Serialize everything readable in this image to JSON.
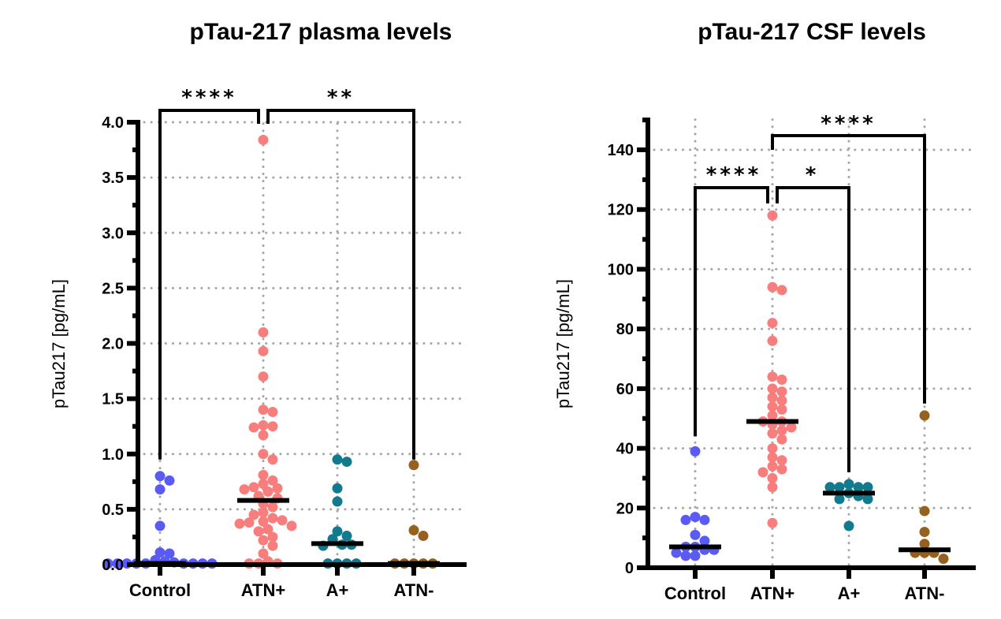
{
  "chart_data": [
    {
      "type": "scatter",
      "subtype": "dot-plot-with-median",
      "title": "pTau-217 plasma levels",
      "xlabel": "",
      "ylabel": "pTau217 [pg/mL]",
      "ylim": [
        0,
        4.0
      ],
      "yticks": [
        0.0,
        0.5,
        1.0,
        1.5,
        2.0,
        2.5,
        3.0,
        3.5,
        4.0
      ],
      "ytick_labels": [
        "0.0",
        "0.5",
        "1.0",
        "1.5",
        "2.0",
        "2.5",
        "3.0",
        "3.5",
        "4.0"
      ],
      "minor_tick_step": 0.25,
      "grid": true,
      "categories": [
        "Control",
        "ATN+",
        "A+",
        "ATN-"
      ],
      "series": [
        {
          "name": "Control",
          "color": "#5a5af5",
          "median": 0.01,
          "values": [
            0.8,
            0.76,
            0.68,
            0.35,
            0.11,
            0.1,
            0.04,
            0.03,
            0.02,
            0.01,
            0.01,
            0.01,
            0.01,
            0.01,
            0.01,
            0.01,
            0.01,
            0.01
          ]
        },
        {
          "name": "ATN+",
          "color": "#f87e7e",
          "median": 0.58,
          "values": [
            3.84,
            2.1,
            1.93,
            1.7,
            1.4,
            1.38,
            1.26,
            1.25,
            1.24,
            1.17,
            1.0,
            0.95,
            0.81,
            0.76,
            0.73,
            0.7,
            0.69,
            0.68,
            0.66,
            0.62,
            0.6,
            0.55,
            0.52,
            0.47,
            0.45,
            0.42,
            0.4,
            0.39,
            0.38,
            0.37,
            0.35,
            0.32,
            0.3,
            0.25,
            0.22,
            0.17,
            0.1,
            0.03,
            0.01,
            0.01,
            0.01
          ]
        },
        {
          "name": "A+",
          "color": "#127a8f",
          "median": 0.19,
          "values": [
            0.95,
            0.93,
            0.69,
            0.57,
            0.3,
            0.26,
            0.23,
            0.18,
            0.18,
            0.17,
            0.01,
            0.01,
            0.01,
            0.01
          ]
        },
        {
          "name": "ATN-",
          "color": "#96601f",
          "median": 0.01,
          "values": [
            0.9,
            0.31,
            0.26,
            0.01,
            0.01,
            0.01,
            0.01,
            0.01
          ]
        }
      ],
      "significance": [
        {
          "from": "Control",
          "to": "ATN+",
          "label": "****"
        },
        {
          "from": "ATN+",
          "to": "ATN-",
          "label": "**"
        }
      ]
    },
    {
      "type": "scatter",
      "subtype": "dot-plot-with-median",
      "title": "pTau-217 CSF levels",
      "xlabel": "",
      "ylabel": "pTau217 [pg/mL]",
      "ylim": [
        0,
        150
      ],
      "yticks": [
        0,
        20,
        40,
        60,
        80,
        100,
        120,
        140
      ],
      "ytick_labels": [
        "0",
        "20",
        "40",
        "60",
        "80",
        "100",
        "120",
        "140"
      ],
      "minor_tick_step": 10,
      "grid": true,
      "categories": [
        "Control",
        "ATN+",
        "A+",
        "ATN-"
      ],
      "series": [
        {
          "name": "Control",
          "color": "#5a5af5",
          "median": 7,
          "values": [
            39,
            17,
            16,
            16,
            11,
            9,
            7,
            7,
            6,
            6,
            5,
            4,
            4
          ]
        },
        {
          "name": "ATN+",
          "color": "#f87e7e",
          "median": 49,
          "values": [
            118,
            94,
            93,
            82,
            76,
            64,
            63,
            60,
            59,
            57,
            56,
            54,
            53,
            51,
            49,
            49,
            48,
            47,
            46,
            45,
            43,
            40,
            37,
            36,
            34,
            33,
            32,
            30,
            27,
            15
          ]
        },
        {
          "name": "A+",
          "color": "#127a8f",
          "median": 25,
          "values": [
            28,
            27,
            27,
            27,
            27,
            25,
            24,
            23,
            23,
            14
          ]
        },
        {
          "name": "ATN-",
          "color": "#96601f",
          "median": 6,
          "values": [
            51,
            19,
            12,
            8,
            5,
            5,
            5,
            3
          ]
        }
      ],
      "significance": [
        {
          "from": "ATN+",
          "to": "ATN-",
          "label": "****"
        },
        {
          "from": "Control",
          "to": "ATN+",
          "label": "****"
        },
        {
          "from": "ATN+",
          "to": "A+",
          "label": "*"
        }
      ]
    }
  ]
}
